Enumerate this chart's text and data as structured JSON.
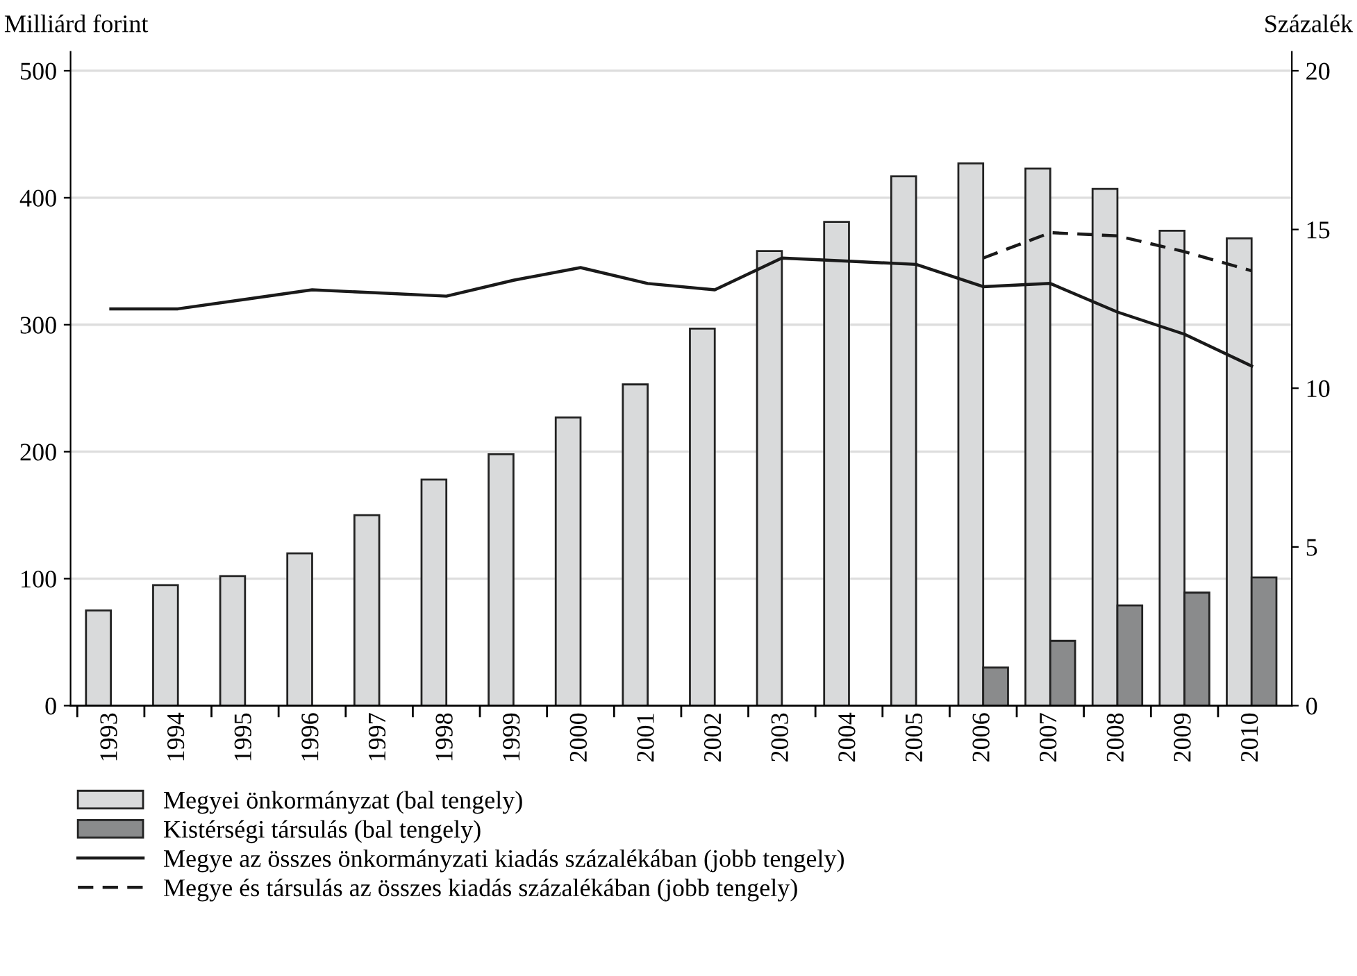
{
  "chart_data": {
    "type": "bar",
    "ylabel": "Milliárd forint",
    "y2label": "Százalék",
    "categories": [
      "1993",
      "1994",
      "1995",
      "1996",
      "1997",
      "1998",
      "1999",
      "2000",
      "2001",
      "2002",
      "2003",
      "2004",
      "2005",
      "2006",
      "2007",
      "2008",
      "2009",
      "2010"
    ],
    "series": [
      {
        "name": "Megyei önkormányzat (bal tengely)",
        "color": "#d9dadb",
        "values": [
          75,
          95,
          102,
          120,
          150,
          178,
          198,
          227,
          253,
          297,
          358,
          381,
          417,
          427,
          423,
          407,
          374,
          368
        ]
      },
      {
        "name": "Kistérségi társulás (bal tengely)",
        "color": "#8a8b8c",
        "values": [
          null,
          null,
          null,
          null,
          null,
          null,
          null,
          null,
          null,
          null,
          null,
          null,
          null,
          30,
          51,
          79,
          89,
          101
        ]
      },
      {
        "name": "Megye az összes önkormányzati kiadás százalékában (jobb tengely)",
        "type": "line",
        "axis": "y2",
        "color": "#1a1a1a",
        "line_style": "solid",
        "values": [
          12.5,
          12.5,
          12.8,
          13.1,
          13.0,
          12.9,
          13.4,
          13.8,
          13.3,
          13.1,
          14.1,
          14.0,
          13.9,
          13.2,
          13.3,
          12.4,
          11.7,
          10.7
        ]
      },
      {
        "name": "Megye és társulás az összes kiadás százalékában (jobb tengely)",
        "type": "line",
        "axis": "y2",
        "color": "#1a1a1a",
        "line_style": "dashed",
        "values": [
          null,
          null,
          null,
          null,
          null,
          null,
          null,
          null,
          null,
          null,
          null,
          null,
          null,
          14.1,
          14.9,
          14.8,
          14.3,
          13.7
        ]
      }
    ],
    "ylim": [
      0,
      515
    ],
    "yticks": [
      0,
      100,
      200,
      300,
      400,
      500
    ],
    "y2lim": [
      0,
      20.6
    ],
    "y2ticks": [
      0,
      5,
      10,
      15,
      20
    ],
    "grid": "y",
    "legend": "bottom"
  }
}
